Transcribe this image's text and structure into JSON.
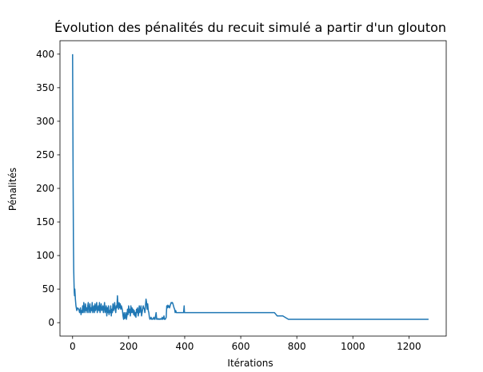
{
  "chart_data": {
    "type": "line",
    "title": "Évolution des pénalités du recuit simulé a partir d'un glouton",
    "xlabel": "Itérations",
    "ylabel": "Pénalités",
    "xlim": [
      -45,
      1333
    ],
    "ylim": [
      -20,
      420
    ],
    "xticks": [
      0,
      200,
      400,
      600,
      800,
      1000,
      1200
    ],
    "yticks": [
      0,
      50,
      100,
      150,
      200,
      250,
      300,
      350,
      400
    ],
    "grid": false,
    "legend": "none",
    "series": [
      {
        "color": "#1f77b4",
        "x": [
          0,
          1,
          2,
          3,
          4,
          5,
          6,
          7,
          8,
          10,
          12,
          15,
          18,
          22,
          25,
          28,
          30,
          32,
          34,
          36,
          38,
          40,
          42,
          44,
          46,
          48,
          50,
          52,
          54,
          56,
          58,
          60,
          62,
          64,
          66,
          68,
          70,
          72,
          74,
          76,
          78,
          80,
          82,
          84,
          86,
          88,
          90,
          92,
          94,
          96,
          98,
          100,
          102,
          104,
          106,
          108,
          110,
          112,
          114,
          116,
          118,
          120,
          122,
          124,
          126,
          128,
          130,
          132,
          134,
          136,
          138,
          140,
          142,
          144,
          146,
          148,
          150,
          152,
          154,
          156,
          158,
          160,
          162,
          164,
          166,
          168,
          170,
          172,
          174,
          176,
          178,
          180,
          182,
          184,
          186,
          188,
          190,
          192,
          194,
          196,
          198,
          200,
          202,
          204,
          206,
          208,
          210,
          212,
          214,
          216,
          218,
          220,
          222,
          224,
          226,
          228,
          230,
          232,
          234,
          236,
          238,
          240,
          242,
          244,
          246,
          248,
          250,
          252,
          254,
          256,
          258,
          260,
          262,
          264,
          266,
          268,
          270,
          272,
          274,
          276,
          278,
          280,
          282,
          284,
          286,
          288,
          290,
          292,
          294,
          296,
          298,
          300,
          302,
          304,
          306,
          308,
          310,
          312,
          314,
          316,
          318,
          320,
          322,
          324,
          326,
          328,
          330,
          332,
          334,
          336,
          338,
          340,
          342,
          344,
          346,
          348,
          350,
          352,
          354,
          356,
          358,
          360,
          362,
          364,
          366,
          368,
          370,
          372,
          374,
          376,
          378,
          380,
          382,
          384,
          386,
          388,
          390,
          392,
          394,
          396,
          398,
          399,
          400,
          401,
          720,
          730,
          750,
          770,
          1270
        ],
        "y": [
          400,
          300,
          200,
          120,
          80,
          60,
          45,
          40,
          50,
          35,
          25,
          18,
          22,
          20,
          15,
          22,
          12,
          18,
          15,
          25,
          15,
          30,
          20,
          15,
          28,
          18,
          22,
          15,
          25,
          30,
          15,
          20,
          28,
          15,
          22,
          18,
          30,
          15,
          20,
          25,
          15,
          28,
          18,
          22,
          30,
          15,
          20,
          25,
          18,
          30,
          15,
          22,
          28,
          18,
          20,
          25,
          15,
          22,
          30,
          15,
          18,
          25,
          10,
          22,
          15,
          25,
          12,
          18,
          15,
          25,
          10,
          20,
          15,
          28,
          18,
          22,
          30,
          20,
          15,
          25,
          22,
          40,
          25,
          20,
          30,
          22,
          28,
          20,
          25,
          22,
          18,
          10,
          5,
          15,
          6,
          8,
          15,
          5,
          10,
          20,
          12,
          25,
          15,
          20,
          10,
          25,
          15,
          22,
          15,
          20,
          12,
          18,
          10,
          15,
          8,
          20,
          15,
          22,
          10,
          15,
          25,
          15,
          20,
          25,
          10,
          15,
          20,
          25,
          22,
          20,
          15,
          25,
          35,
          30,
          20,
          28,
          18,
          15,
          8,
          5,
          6,
          8,
          5,
          6,
          5,
          6,
          8,
          5,
          5,
          10,
          15,
          5,
          6,
          5,
          6,
          5,
          5,
          6,
          5,
          6,
          5,
          8,
          5,
          6,
          10,
          5,
          5,
          6,
          8,
          25,
          22,
          26,
          23,
          25,
          22,
          25,
          28,
          30,
          29,
          30,
          28,
          25,
          22,
          20,
          15,
          18,
          15,
          15,
          15,
          15,
          15,
          15,
          15,
          15,
          15,
          15,
          15,
          15,
          15,
          15,
          25,
          15,
          15,
          15,
          15,
          10,
          10,
          5,
          5
        ]
      }
    ]
  }
}
